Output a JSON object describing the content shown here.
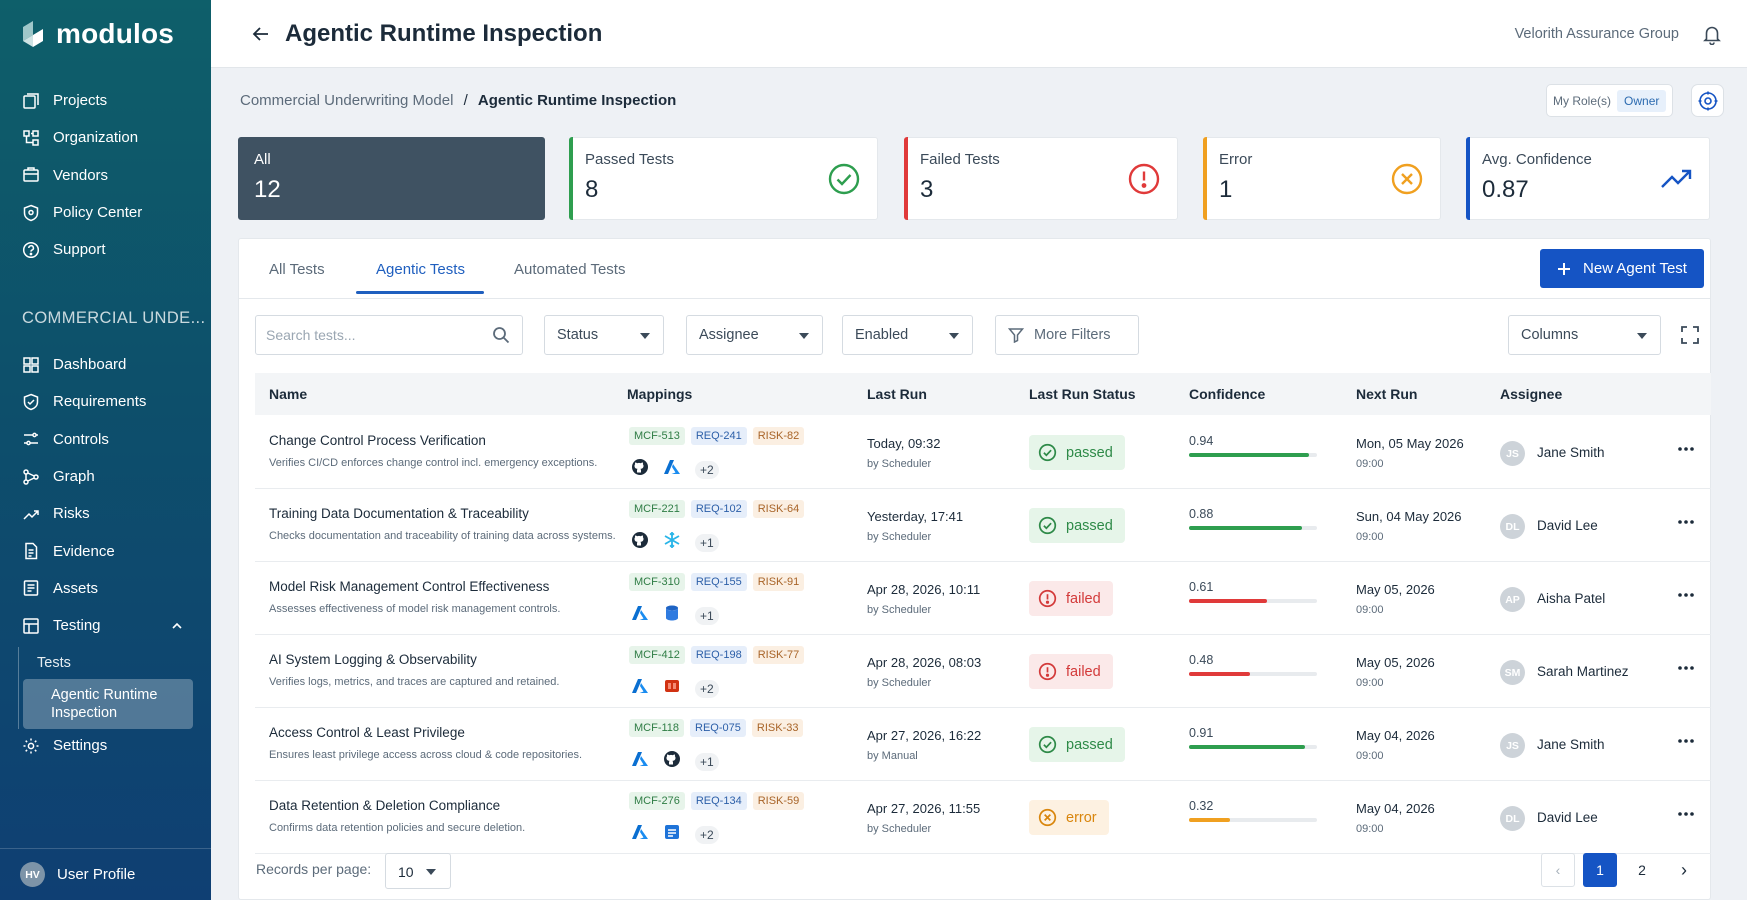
{
  "brand": {
    "name": "modulos"
  },
  "sidebar": {
    "top_items": [
      {
        "label": "Projects",
        "icon": "projects-icon"
      },
      {
        "label": "Organization",
        "icon": "organization-icon"
      },
      {
        "label": "Vendors",
        "icon": "vendors-icon"
      },
      {
        "label": "Policy Center",
        "icon": "policy-icon"
      },
      {
        "label": "Support",
        "icon": "support-icon"
      }
    ],
    "section_label": "COMMERCIAL UNDE...",
    "project_items": [
      {
        "label": "Dashboard",
        "icon": "dashboard-icon"
      },
      {
        "label": "Requirements",
        "icon": "requirements-icon"
      },
      {
        "label": "Controls",
        "icon": "controls-icon"
      },
      {
        "label": "Graph",
        "icon": "graph-icon"
      },
      {
        "label": "Risks",
        "icon": "risks-icon"
      },
      {
        "label": "Evidence",
        "icon": "evidence-icon"
      },
      {
        "label": "Assets",
        "icon": "assets-icon"
      },
      {
        "label": "Testing",
        "icon": "testing-icon"
      }
    ],
    "testing_sub": [
      {
        "label": "Tests"
      },
      {
        "label": "Agentic Runtime Inspection"
      }
    ],
    "settings_label": "Settings",
    "user": {
      "initials": "HV",
      "label": "User Profile"
    }
  },
  "header": {
    "title": "Agentic Runtime Inspection",
    "org": "Velorith Assurance Group"
  },
  "breadcrumb": {
    "parent": "Commercial Underwriting Model",
    "separator": "/",
    "current": "Agentic Runtime Inspection"
  },
  "roles": {
    "label": "My Role(s)",
    "value": "Owner"
  },
  "stats": [
    {
      "label": "All",
      "value": "12"
    },
    {
      "label": "Passed Tests",
      "value": "8",
      "color": "#2e9e4f"
    },
    {
      "label": "Failed Tests",
      "value": "3",
      "color": "#e03a3a"
    },
    {
      "label": "Error",
      "value": "1",
      "color": "#f0a020"
    },
    {
      "label": "Avg. Confidence",
      "value": "0.87",
      "color": "#1554c4"
    }
  ],
  "tabs": [
    {
      "label": "All Tests"
    },
    {
      "label": "Agentic Tests"
    },
    {
      "label": "Automated Tests"
    }
  ],
  "new_button": "New Agent Test",
  "filters": {
    "search_placeholder": "Search tests...",
    "status": "Status",
    "assignee": "Assignee",
    "enabled": "Enabled",
    "more": "More Filters",
    "columns": "Columns"
  },
  "table": {
    "headers": [
      "Name",
      "Mappings",
      "Last Run",
      "Last Run Status",
      "Confidence",
      "Next Run",
      "Assignee"
    ],
    "rows": [
      {
        "name": "Change Control Process Verification",
        "desc": "Verifies CI/CD enforces change control incl. emergency exceptions.",
        "mcf": "MCF-513",
        "req": "REQ-241",
        "risk": "RISK-82",
        "icons": [
          "github-icon",
          "azure-icon"
        ],
        "more": "+2",
        "last_run": "Today, 09:32",
        "by": "by Scheduler",
        "status": "passed",
        "confidence": "0.94",
        "confidence_value": 0.94,
        "next_run": "Mon, 05 May 2026",
        "next_time": "09:00",
        "initials": "JS",
        "assignee": "Jane Smith"
      },
      {
        "name": "Training Data Documentation & Traceability",
        "desc": "Checks documentation and traceability of training data across systems.",
        "mcf": "MCF-221",
        "req": "REQ-102",
        "risk": "RISK-64",
        "icons": [
          "github-icon",
          "snowflake-icon"
        ],
        "more": "+1",
        "last_run": "Yesterday, 17:41",
        "by": "by Scheduler",
        "status": "passed",
        "confidence": "0.88",
        "confidence_value": 0.88,
        "next_run": "Sun, 04 May 2026",
        "next_time": "09:00",
        "initials": "DL",
        "assignee": "David Lee"
      },
      {
        "name": "Model Risk Management Control Effectiveness",
        "desc": "Assesses effectiveness of model risk management controls.",
        "mcf": "MCF-310",
        "req": "REQ-155",
        "risk": "RISK-91",
        "icons": [
          "azure-icon",
          "database-icon"
        ],
        "more": "+1",
        "last_run": "Apr 28, 2026, 10:11",
        "by": "by Scheduler",
        "status": "failed",
        "confidence": "0.61",
        "confidence_value": 0.61,
        "next_run": "May 05, 2026",
        "next_time": "09:00",
        "initials": "AP",
        "assignee": "Aisha Patel"
      },
      {
        "name": "AI System Logging & Observability",
        "desc": "Verifies logs, metrics, and traces are captured and retained.",
        "mcf": "MCF-412",
        "req": "REQ-198",
        "risk": "RISK-77",
        "icons": [
          "azure-icon",
          "aws-icon"
        ],
        "more": "+2",
        "last_run": "Apr 28, 2026, 08:03",
        "by": "by Scheduler",
        "status": "failed",
        "confidence": "0.48",
        "confidence_value": 0.48,
        "next_run": "May 05, 2026",
        "next_time": "09:00",
        "initials": "SM",
        "assignee": "Sarah Martinez"
      },
      {
        "name": "Access Control & Least Privilege",
        "desc": "Ensures least privilege access across cloud & code repositories.",
        "mcf": "MCF-118",
        "req": "REQ-075",
        "risk": "RISK-33",
        "icons": [
          "azure-icon",
          "github-icon"
        ],
        "more": "+1",
        "last_run": "Apr 27, 2026, 16:22",
        "by": "by Manual",
        "status": "passed",
        "confidence": "0.91",
        "confidence_value": 0.91,
        "next_run": "May 04, 2026",
        "next_time": "09:00",
        "initials": "JS",
        "assignee": "Jane Smith"
      },
      {
        "name": "Data Retention & Deletion Compliance",
        "desc": "Confirms data retention policies and secure deletion.",
        "mcf": "MCF-276",
        "req": "REQ-134",
        "risk": "RISK-59",
        "icons": [
          "azure-icon",
          "storage-icon"
        ],
        "more": "+2",
        "last_run": "Apr 27, 2026, 11:55",
        "by": "by Scheduler",
        "status": "error",
        "confidence": "0.32",
        "confidence_value": 0.32,
        "next_run": "May 04, 2026",
        "next_time": "09:00",
        "initials": "DL",
        "assignee": "David Lee"
      }
    ]
  },
  "pagination": {
    "records_label": "Records per page:",
    "per_page": "10",
    "pages": [
      "1",
      "2"
    ],
    "current": "1"
  }
}
